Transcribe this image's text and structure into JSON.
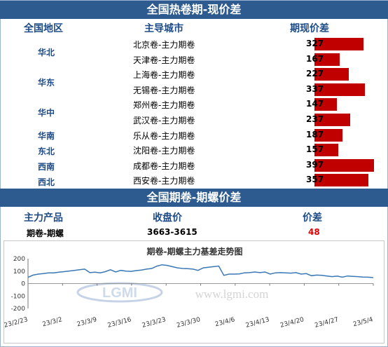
{
  "section1": {
    "title": "全国热卷期-现价差",
    "headers": [
      "全国地区",
      "主导城市",
      "期现价差"
    ],
    "regions": [
      "华北",
      "华东",
      "华中",
      "华南",
      "东北",
      "西南",
      "西北"
    ],
    "rows": [
      {
        "city": "北京卷-主力期卷",
        "value": "327",
        "num": 327
      },
      {
        "city": "天津卷-主力期卷",
        "value": "167",
        "num": 167
      },
      {
        "city": "上海卷-主力期卷",
        "value": "227",
        "num": 227
      },
      {
        "city": "无锡卷-主力期卷",
        "value": "337",
        "num": 337
      },
      {
        "city": "郑州卷-主力期卷",
        "value": "147",
        "num": 147
      },
      {
        "city": "武汉卷-主力期卷",
        "value": "237",
        "num": 237
      },
      {
        "city": "乐从卷-主力期卷",
        "value": "187",
        "num": 187
      },
      {
        "city": "沈阳卷-主力期卷",
        "value": "157",
        "num": 157
      },
      {
        "city": "成都卷-主力期卷",
        "value": "397",
        "num": 397
      },
      {
        "city": "西安卷-主力期卷",
        "value": "357",
        "num": 357
      }
    ],
    "bar_color": "#c00000"
  },
  "section2": {
    "title": "全国期卷-期螺价差",
    "headers": [
      "主力产品",
      "收盘价",
      "价差"
    ],
    "row": {
      "product": "期卷-期螺",
      "close": "3663-3615",
      "spread": "48"
    },
    "spread_color": "#e00000"
  },
  "chart_data": {
    "type": "line",
    "title": "期卷-期螺主力基差走势图",
    "watermark_text": "www.lgmi.com",
    "watermark_logo": "LGMI",
    "ylim": [
      -200,
      200
    ],
    "yticks": [
      "200",
      "100",
      "0",
      "-100",
      "-200"
    ],
    "xticks": [
      "23/2/23",
      "23/3/2",
      "23/3/9",
      "23/3/16",
      "23/3/23",
      "23/3/30",
      "23/4/6",
      "23/4/13",
      "23/4/20",
      "23/4/27",
      "23/5/4"
    ],
    "series": [
      {
        "color": "#3a78b5",
        "values": [
          50,
          68,
          76,
          80,
          86,
          86,
          91,
          96,
          101,
          106,
          111,
          116,
          88,
          91,
          86,
          96,
          111,
          93,
          106,
          100,
          98,
          104,
          109,
          116,
          121,
          140,
          151,
          146,
          136,
          126,
          121,
          120,
          116,
          106,
          126,
          131,
          136,
          141,
          66,
          76,
          76,
          78,
          86,
          88,
          93,
          88,
          93,
          76,
          86,
          88,
          86,
          84,
          88,
          76,
          80,
          63,
          68,
          66,
          61,
          56,
          60,
          51,
          61,
          58,
          56,
          52,
          51,
          48
        ]
      }
    ],
    "grid": false
  }
}
